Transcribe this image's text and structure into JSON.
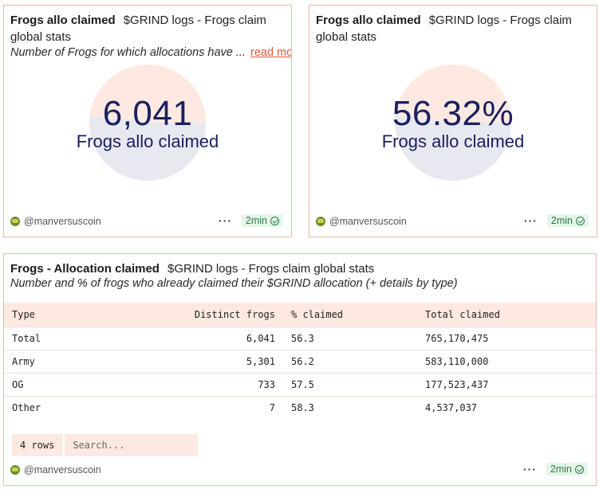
{
  "cards": [
    {
      "title": "Frogs allo claimed",
      "query": "$GRIND logs - Frogs claim global stats",
      "description": "Number of Frogs for which allocations have ...",
      "read_more": "read more",
      "counter_value": "6,041",
      "counter_label": "Frogs allo claimed",
      "author": "@manversuscoin",
      "freshness": "2min"
    },
    {
      "title": "Frogs allo claimed",
      "query": "$GRIND logs - Frogs claim global stats",
      "counter_value": "56.32%",
      "counter_label": "Frogs allo claimed",
      "author": "@manversuscoin",
      "freshness": "2min"
    }
  ],
  "table_card": {
    "title": "Frogs - Allocation claimed",
    "query": "$GRIND logs - Frogs claim global stats",
    "description": "Number and % of frogs who already claimed their $GRIND allocation (+ details by type)",
    "columns": [
      "Type",
      "Distinct frogs",
      "% claimed",
      "Total claimed"
    ],
    "rows": [
      [
        "Total",
        "6,041",
        "56.3",
        "765,170,475"
      ],
      [
        "Army",
        "5,301",
        "56.2",
        "583,110,000"
      ],
      [
        "OG",
        "733",
        "57.5",
        "177,523,437"
      ],
      [
        "Other",
        "7",
        "58.3",
        "4,537,037"
      ]
    ],
    "row_count": "4 rows",
    "search_placeholder": "Search...",
    "author": "@manversuscoin",
    "freshness": "2min"
  },
  "colors": {
    "card_border": "#f0b7a4",
    "counter_text": "#1a2060",
    "pie_light": "#fde9e1",
    "pie_grey": "#e8e9f0",
    "header_bg": "#fde9e1",
    "fresh_bg": "#e5f5ea",
    "fresh_text": "#2e7d47",
    "link": "#e5563b"
  },
  "icons": [
    "avatar-icon",
    "more-dots-icon",
    "check-circle-icon"
  ]
}
